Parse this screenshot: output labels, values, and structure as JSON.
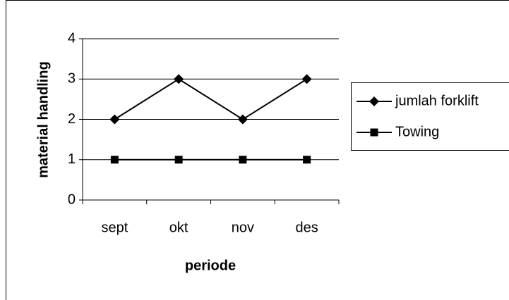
{
  "chart_data": {
    "type": "line",
    "x_label": "periode",
    "y_label": "material handling",
    "categories": [
      "sept",
      "okt",
      "nov",
      "des"
    ],
    "series": [
      {
        "name": "jumlah forklift",
        "color": "#000000",
        "marker": "diamond",
        "values": [
          2,
          3,
          2,
          3
        ]
      },
      {
        "name": "Towing",
        "color": "#000000",
        "marker": "square",
        "values": [
          1,
          1,
          1,
          1
        ]
      }
    ],
    "ylim": [
      0,
      4
    ],
    "yticks": [
      0,
      1,
      2,
      3,
      4
    ],
    "grid": true,
    "legend": "right"
  }
}
